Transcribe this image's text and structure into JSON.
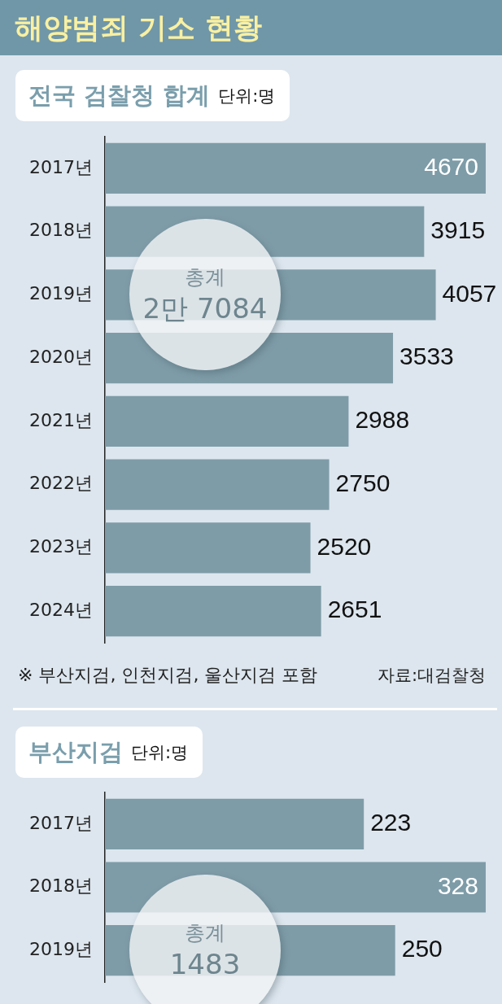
{
  "chart_data": [
    {
      "type": "other",
      "title": "해양범죄 기소 현황"
    },
    {
      "type": "bar",
      "orientation": "horizontal",
      "title": "전국 검찰청 합계",
      "subtitle": "단위:명",
      "categories": [
        "2017년",
        "2018년",
        "2019년",
        "2020년",
        "2021년",
        "2022년",
        "2023년",
        "2024년"
      ],
      "values": [
        4670,
        3915,
        4057,
        3533,
        2988,
        2750,
        2520,
        2651
      ],
      "color": "#7e9ca8",
      "data_labels": true,
      "tick_labels": "y",
      "annotations": [
        "총계",
        "2만 7084",
        "※ 부산지검, 인천지검, 울산지검 포함",
        "자료:대검찰청"
      ]
    },
    {
      "type": "bar",
      "orientation": "horizontal",
      "title": "부산지검",
      "subtitle": "단위:명",
      "categories": [
        "2017년",
        "2018년",
        "2019년"
      ],
      "values": [
        223,
        328,
        250
      ],
      "color": "#7e9ca8",
      "data_labels": true,
      "tick_labels": "y",
      "annotations": [
        "총계",
        "1483"
      ]
    }
  ]
}
